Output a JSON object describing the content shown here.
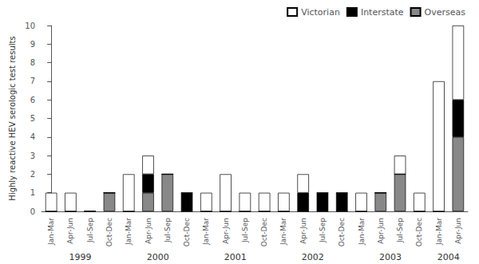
{
  "chart_data": {
    "type": "bar",
    "stacked": true,
    "categories": [
      "Jan-Mar",
      "Apr-Jun",
      "Jul-Sep",
      "Oct-Dec",
      "Jan-Mar",
      "Apr-Jun",
      "Jul-Sep",
      "Oct-Dec",
      "Jan-Mar",
      "Apr-Jun",
      "Jul-Sep",
      "Oct-Dec",
      "Jan-Mar",
      "Apr-Jun",
      "Jul-Sep",
      "Oct-Dec",
      "Jan-Mar",
      "Apr-Jun",
      "Jul-Sep",
      "Oct-Dec",
      "Jan-Mar",
      "Apr-Jun"
    ],
    "series": [
      {
        "name": "Victorian",
        "color": "#ffffff",
        "values": [
          1,
          1,
          0,
          0,
          2,
          1,
          0,
          0,
          1,
          2,
          1,
          1,
          1,
          1,
          0,
          0,
          1,
          0,
          1,
          1,
          7,
          4
        ]
      },
      {
        "name": "Interstate",
        "color": "#000000",
        "values": [
          0,
          0,
          0,
          0,
          0,
          1,
          0,
          1,
          0,
          0,
          0,
          0,
          0,
          1,
          1,
          1,
          0,
          0,
          0,
          0,
          0,
          2
        ]
      },
      {
        "name": "Overseas",
        "color": "#888888",
        "values": [
          0,
          0,
          0,
          1,
          0,
          1,
          2,
          0,
          0,
          0,
          0,
          0,
          0,
          0,
          0,
          0,
          0,
          1,
          2,
          0,
          0,
          4
        ]
      }
    ],
    "ylabel": "Highly reactive HEV serologic test results",
    "ylim": [
      0,
      10
    ],
    "yticks": [
      0,
      1,
      2,
      3,
      4,
      5,
      6,
      7,
      8,
      9,
      10
    ],
    "grid": false,
    "legend": "upper right",
    "annotations": [
      {
        "text": "1999",
        "categories": [
          0,
          1,
          2,
          3
        ]
      },
      {
        "text": "2000",
        "categories": [
          4,
          5,
          6,
          7
        ]
      },
      {
        "text": "2001",
        "categories": [
          8,
          9,
          10,
          11
        ]
      },
      {
        "text": "2002",
        "categories": [
          12,
          13,
          14,
          15
        ]
      },
      {
        "text": "2003",
        "categories": [
          16,
          17,
          18,
          19
        ]
      },
      {
        "text": "2004",
        "categories": [
          20,
          21
        ]
      }
    ]
  }
}
